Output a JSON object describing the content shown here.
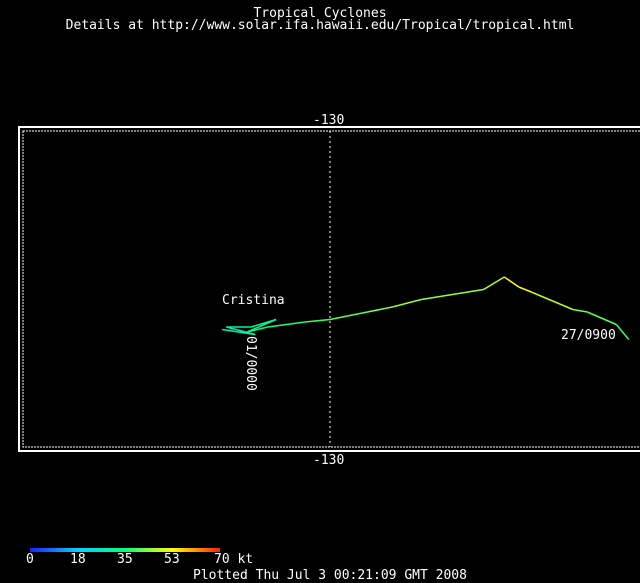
{
  "header": {
    "title": "Tropical Cyclones",
    "subtitle": "Details at http://www.solar.ifa.hawaii.edu/Tropical/tropical.html"
  },
  "map": {
    "lon_label_top": "-130",
    "lon_label_bottom": "-130",
    "storm_name": "Cristina",
    "start_label": "27/0900",
    "end_label": "01/0000"
  },
  "track": [
    {
      "lon": -115.6,
      "lat": 14.0,
      "wind_kt": 35
    },
    {
      "lon": -116.2,
      "lat": 14.6,
      "wind_kt": 40
    },
    {
      "lon": -117.6,
      "lat": 15.1,
      "wind_kt": 42
    },
    {
      "lon": -118.3,
      "lat": 15.2,
      "wind_kt": 45
    },
    {
      "lon": -120.3,
      "lat": 15.9,
      "wind_kt": 50
    },
    {
      "lon": -120.9,
      "lat": 16.1,
      "wind_kt": 55
    },
    {
      "lon": -121.6,
      "lat": 16.5,
      "wind_kt": 50
    },
    {
      "lon": -122.6,
      "lat": 16.0,
      "wind_kt": 45
    },
    {
      "lon": -125.6,
      "lat": 15.6,
      "wind_kt": 45
    },
    {
      "lon": -127.0,
      "lat": 15.3,
      "wind_kt": 45
    },
    {
      "lon": -128.2,
      "lat": 15.1,
      "wind_kt": 42
    },
    {
      "lon": -130.0,
      "lat": 14.8,
      "wind_kt": 40
    },
    {
      "lon": -131.2,
      "lat": 14.7,
      "wind_kt": 38
    },
    {
      "lon": -133.0,
      "lat": 14.5,
      "wind_kt": 35
    },
    {
      "lon": -134.0,
      "lat": 14.3,
      "wind_kt": 35
    },
    {
      "lon": -132.6,
      "lat": 14.8,
      "wind_kt": 33
    },
    {
      "lon": -133.8,
      "lat": 14.5,
      "wind_kt": 30
    },
    {
      "lon": -135.0,
      "lat": 14.5,
      "wind_kt": 30
    },
    {
      "lon": -133.6,
      "lat": 14.2,
      "wind_kt": 30
    },
    {
      "lon": -135.2,
      "lat": 14.4,
      "wind_kt": 30
    }
  ],
  "colorbar": {
    "ticks": [
      "0",
      "18",
      "35",
      "53",
      "70 kt"
    ],
    "colors": [
      "#2020ff",
      "#00d0ff",
      "#00ff80",
      "#ffff00",
      "#ff2000"
    ]
  },
  "footer": {
    "plotted": "Plotted Thu Jul  3 00:21:09 GMT 2008"
  },
  "colors": {
    "background": "#000000",
    "frame": "#ffffff",
    "text": "#ffffff"
  }
}
